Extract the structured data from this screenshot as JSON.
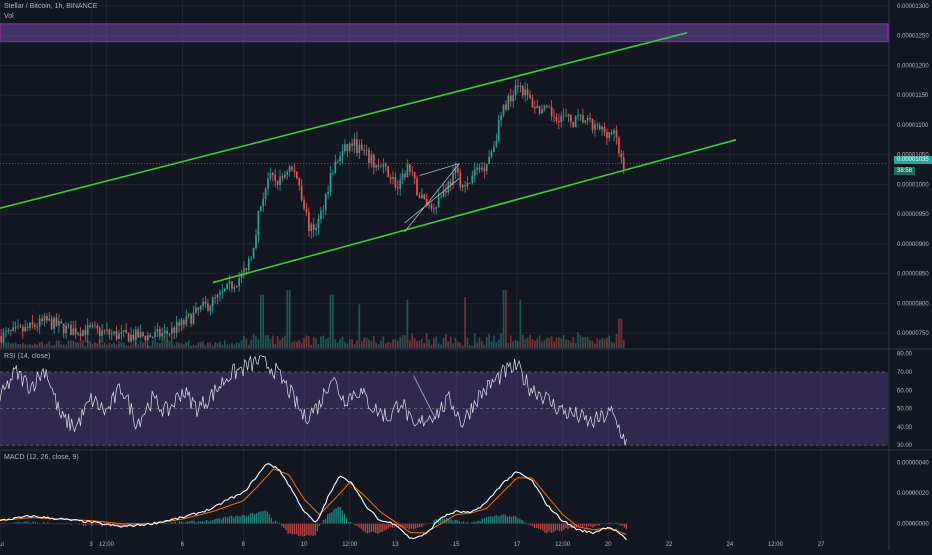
{
  "header": {
    "title": "Stellar / Bitcoin, 1h, BINANCE",
    "volume_label": "Vol"
  },
  "chart_data": [
    {
      "type": "candlestick",
      "name": "price",
      "yscale": "linear",
      "ylim": [
        7.25e-06,
        1.31e-05
      ],
      "y_ticks": [
        "0.00000750",
        "0.00000800",
        "0.00000850",
        "0.00000900",
        "0.00000950",
        "0.00001000",
        "0.00001050",
        "0.00001100",
        "0.00001150",
        "0.00001200",
        "0.00001250",
        "0.00001300"
      ],
      "y_tick_values": [
        7.5e-06,
        8e-06,
        8.5e-06,
        9e-06,
        9.5e-06,
        1e-05,
        1.05e-05,
        1.1e-05,
        1.15e-05,
        1.2e-05,
        1.25e-05,
        1.3e-05
      ],
      "x_ticks": [
        "Jul",
        "3",
        "12:00",
        "6",
        "8",
        "10",
        "12:00",
        "13",
        "15",
        "17",
        "12:00",
        "20",
        "22",
        "24",
        "12:00",
        "27"
      ],
      "x_tick_values": [
        0,
        3,
        3.5,
        6,
        8,
        10,
        11.5,
        13,
        15,
        17,
        18.5,
        20,
        22,
        24,
        25.5,
        27
      ],
      "x_range": [
        0,
        29.2
      ],
      "last_price": "0.00001035",
      "countdown": "38:58",
      "price_anchors": [
        [
          0,
          7.45
        ],
        [
          0.8,
          7.55
        ],
        [
          1.5,
          7.7
        ],
        [
          2.3,
          7.55
        ],
        [
          3,
          7.55
        ],
        [
          4,
          7.45
        ],
        [
          5,
          7.45
        ],
        [
          5.5,
          7.5
        ],
        [
          6,
          7.65
        ],
        [
          6.6,
          7.9
        ],
        [
          7.2,
          8.1
        ],
        [
          7.6,
          8.3
        ],
        [
          8,
          8.5
        ],
        [
          8.3,
          8.9
        ],
        [
          8.5,
          9.5
        ],
        [
          8.8,
          10.1
        ],
        [
          9.2,
          10.05
        ],
        [
          9.5,
          10.3
        ],
        [
          9.8,
          10.1
        ],
        [
          10.2,
          9.2
        ],
        [
          10.5,
          9.4
        ],
        [
          10.9,
          10.2
        ],
        [
          11.2,
          10.5
        ],
        [
          11.6,
          10.7
        ],
        [
          12,
          10.5
        ],
        [
          12.4,
          10.3
        ],
        [
          12.8,
          10.2
        ],
        [
          13.1,
          9.9
        ],
        [
          13.4,
          10.3
        ],
        [
          13.8,
          9.8
        ],
        [
          14.2,
          9.6
        ],
        [
          14.6,
          9.9
        ],
        [
          15,
          10.2
        ],
        [
          15.3,
          9.9
        ],
        [
          15.6,
          10.2
        ],
        [
          15.9,
          10.3
        ],
        [
          16.2,
          10.6
        ],
        [
          16.5,
          11.2
        ],
        [
          16.8,
          11.5
        ],
        [
          17,
          11.75
        ],
        [
          17.3,
          11.5
        ],
        [
          17.6,
          11.3
        ],
        [
          18,
          11.2
        ],
        [
          18.4,
          11.15
        ],
        [
          18.8,
          11.05
        ],
        [
          19.2,
          11.1
        ],
        [
          19.5,
          10.95
        ],
        [
          19.9,
          10.9
        ],
        [
          20.2,
          10.85
        ],
        [
          20.4,
          10.45
        ],
        [
          20.55,
          10.32
        ]
      ],
      "volume_spikes": [
        [
          8.6,
          0.9
        ],
        [
          9.5,
          1.0
        ],
        [
          10.9,
          0.9
        ],
        [
          11.8,
          0.7
        ],
        [
          13.4,
          0.8
        ],
        [
          15.3,
          0.85
        ],
        [
          16.6,
          1.0
        ],
        [
          17.1,
          0.8
        ],
        [
          20.4,
          0.4
        ]
      ],
      "channel_upper": [
        [
          0,
          9.6
        ],
        [
          22.6,
          12.55
        ]
      ],
      "channel_lower": [
        [
          7,
          8.35
        ],
        [
          24.2,
          10.75
        ]
      ],
      "wedge_lines": [
        [
          [
            13.3,
            9.2
          ],
          [
            15.1,
            10.35
          ]
        ],
        [
          [
            13.3,
            9.35
          ],
          [
            15.1,
            10.1
          ]
        ],
        [
          [
            13.8,
            10.15
          ],
          [
            15.1,
            10.35
          ]
        ]
      ],
      "resistance_zone": [
        1.24e-05,
        1.27e-05
      ]
    },
    {
      "type": "line",
      "name": "RSI (14, close)",
      "title": "RSI (14, close)",
      "ylim": [
        29,
        82
      ],
      "y_ticks": [
        "80.00",
        "70.00",
        "60.00",
        "50.00",
        "40.00",
        "30.00"
      ],
      "y_tick_values": [
        80,
        70,
        60,
        50,
        40,
        30
      ],
      "band": [
        30,
        70
      ],
      "anchors": [
        [
          0,
          55
        ],
        [
          0.5,
          70
        ],
        [
          1,
          62
        ],
        [
          1.5,
          72
        ],
        [
          2,
          45
        ],
        [
          2.5,
          40
        ],
        [
          3,
          55
        ],
        [
          3.5,
          48
        ],
        [
          4,
          62
        ],
        [
          4.5,
          42
        ],
        [
          5,
          55
        ],
        [
          5.5,
          48
        ],
        [
          6,
          60
        ],
        [
          6.5,
          50
        ],
        [
          7,
          58
        ],
        [
          7.5,
          68
        ],
        [
          8,
          72
        ],
        [
          8.5,
          76
        ],
        [
          9,
          72
        ],
        [
          9.5,
          60
        ],
        [
          10,
          45
        ],
        [
          10.5,
          52
        ],
        [
          10.9,
          68
        ],
        [
          11.3,
          55
        ],
        [
          11.8,
          60
        ],
        [
          12.3,
          50
        ],
        [
          12.8,
          45
        ],
        [
          13.2,
          55
        ],
        [
          13.6,
          38
        ],
        [
          14,
          45
        ],
        [
          14.4,
          48
        ],
        [
          14.8,
          55
        ],
        [
          15.2,
          42
        ],
        [
          15.7,
          56
        ],
        [
          16.2,
          64
        ],
        [
          16.6,
          70
        ],
        [
          17,
          73
        ],
        [
          17.4,
          62
        ],
        [
          17.8,
          58
        ],
        [
          18.2,
          52
        ],
        [
          18.6,
          48
        ],
        [
          19,
          46
        ],
        [
          19.4,
          42
        ],
        [
          19.8,
          45
        ],
        [
          20.1,
          48
        ],
        [
          20.4,
          38
        ],
        [
          20.6,
          31
        ]
      ],
      "extra_segment": [
        [
          13.6,
          68
        ],
        [
          14.3,
          45
        ]
      ]
    },
    {
      "type": "line",
      "name": "MACD (12, 26, close, 9)",
      "title": "MACD (12, 26, close, 9)",
      "ylim": [
        -1.4e-07,
        4.7e-07
      ],
      "y_ticks": [
        "0.00000040",
        "0.00000020",
        "0.00000000"
      ],
      "y_tick_values": [
        4e-07,
        2e-07,
        0.0
      ],
      "macd_anchors": [
        [
          0,
          0.02
        ],
        [
          1,
          0.05
        ],
        [
          2,
          0.03
        ],
        [
          3,
          0.01
        ],
        [
          4,
          -0.02
        ],
        [
          5,
          0.0
        ],
        [
          6,
          0.04
        ],
        [
          7,
          0.1
        ],
        [
          7.5,
          0.16
        ],
        [
          8,
          0.2
        ],
        [
          8.4,
          0.3
        ],
        [
          8.8,
          0.4
        ],
        [
          9.2,
          0.35
        ],
        [
          9.6,
          0.22
        ],
        [
          10.0,
          0.08
        ],
        [
          10.4,
          0.0
        ],
        [
          10.8,
          0.18
        ],
        [
          11.2,
          0.32
        ],
        [
          11.6,
          0.26
        ],
        [
          12.0,
          0.12
        ],
        [
          12.5,
          0.02
        ],
        [
          13.0,
          0.0
        ],
        [
          13.5,
          -0.1
        ],
        [
          14.0,
          -0.07
        ],
        [
          14.5,
          0.04
        ],
        [
          15.0,
          0.08
        ],
        [
          15.5,
          0.07
        ],
        [
          16.0,
          0.14
        ],
        [
          16.5,
          0.26
        ],
        [
          17.0,
          0.34
        ],
        [
          17.5,
          0.28
        ],
        [
          18.0,
          0.12
        ],
        [
          18.5,
          0.02
        ],
        [
          19.0,
          -0.04
        ],
        [
          19.5,
          -0.06
        ],
        [
          20.0,
          -0.02
        ],
        [
          20.3,
          -0.05
        ],
        [
          20.6,
          -0.11
        ]
      ],
      "signal_anchors": [
        [
          0,
          0.02
        ],
        [
          1,
          0.04
        ],
        [
          2,
          0.03
        ],
        [
          3,
          0.02
        ],
        [
          4,
          0.0
        ],
        [
          5,
          0.0
        ],
        [
          6,
          0.03
        ],
        [
          7,
          0.08
        ],
        [
          8,
          0.15
        ],
        [
          8.5,
          0.25
        ],
        [
          9.0,
          0.36
        ],
        [
          9.5,
          0.32
        ],
        [
          10.0,
          0.16
        ],
        [
          10.5,
          0.06
        ],
        [
          11.0,
          0.16
        ],
        [
          11.5,
          0.27
        ],
        [
          12.0,
          0.18
        ],
        [
          12.5,
          0.08
        ],
        [
          13.0,
          0.01
        ],
        [
          13.5,
          -0.06
        ],
        [
          14.0,
          -0.06
        ],
        [
          14.5,
          0.0
        ],
        [
          15.0,
          0.06
        ],
        [
          15.5,
          0.07
        ],
        [
          16.0,
          0.1
        ],
        [
          16.5,
          0.2
        ],
        [
          17.0,
          0.3
        ],
        [
          17.5,
          0.3
        ],
        [
          18.0,
          0.18
        ],
        [
          18.5,
          0.06
        ],
        [
          19.0,
          -0.02
        ],
        [
          19.5,
          -0.04
        ],
        [
          20.0,
          -0.03
        ],
        [
          20.6,
          -0.07
        ]
      ]
    }
  ],
  "colors": {
    "background": "#131722",
    "grid": "#2a2e39",
    "up": "#26a69a",
    "down": "#ef5350",
    "channel": "#3fcb3c",
    "zone_fill": "#7e57c2",
    "zone_border": "#9c27b0",
    "rsi_fill": "#7e57c2",
    "rsi_line": "#e0e3eb",
    "macd_line": "#ffffff",
    "signal_line": "#ff6d00",
    "text": "#b2b5be",
    "wedge": "#b2b5be"
  }
}
